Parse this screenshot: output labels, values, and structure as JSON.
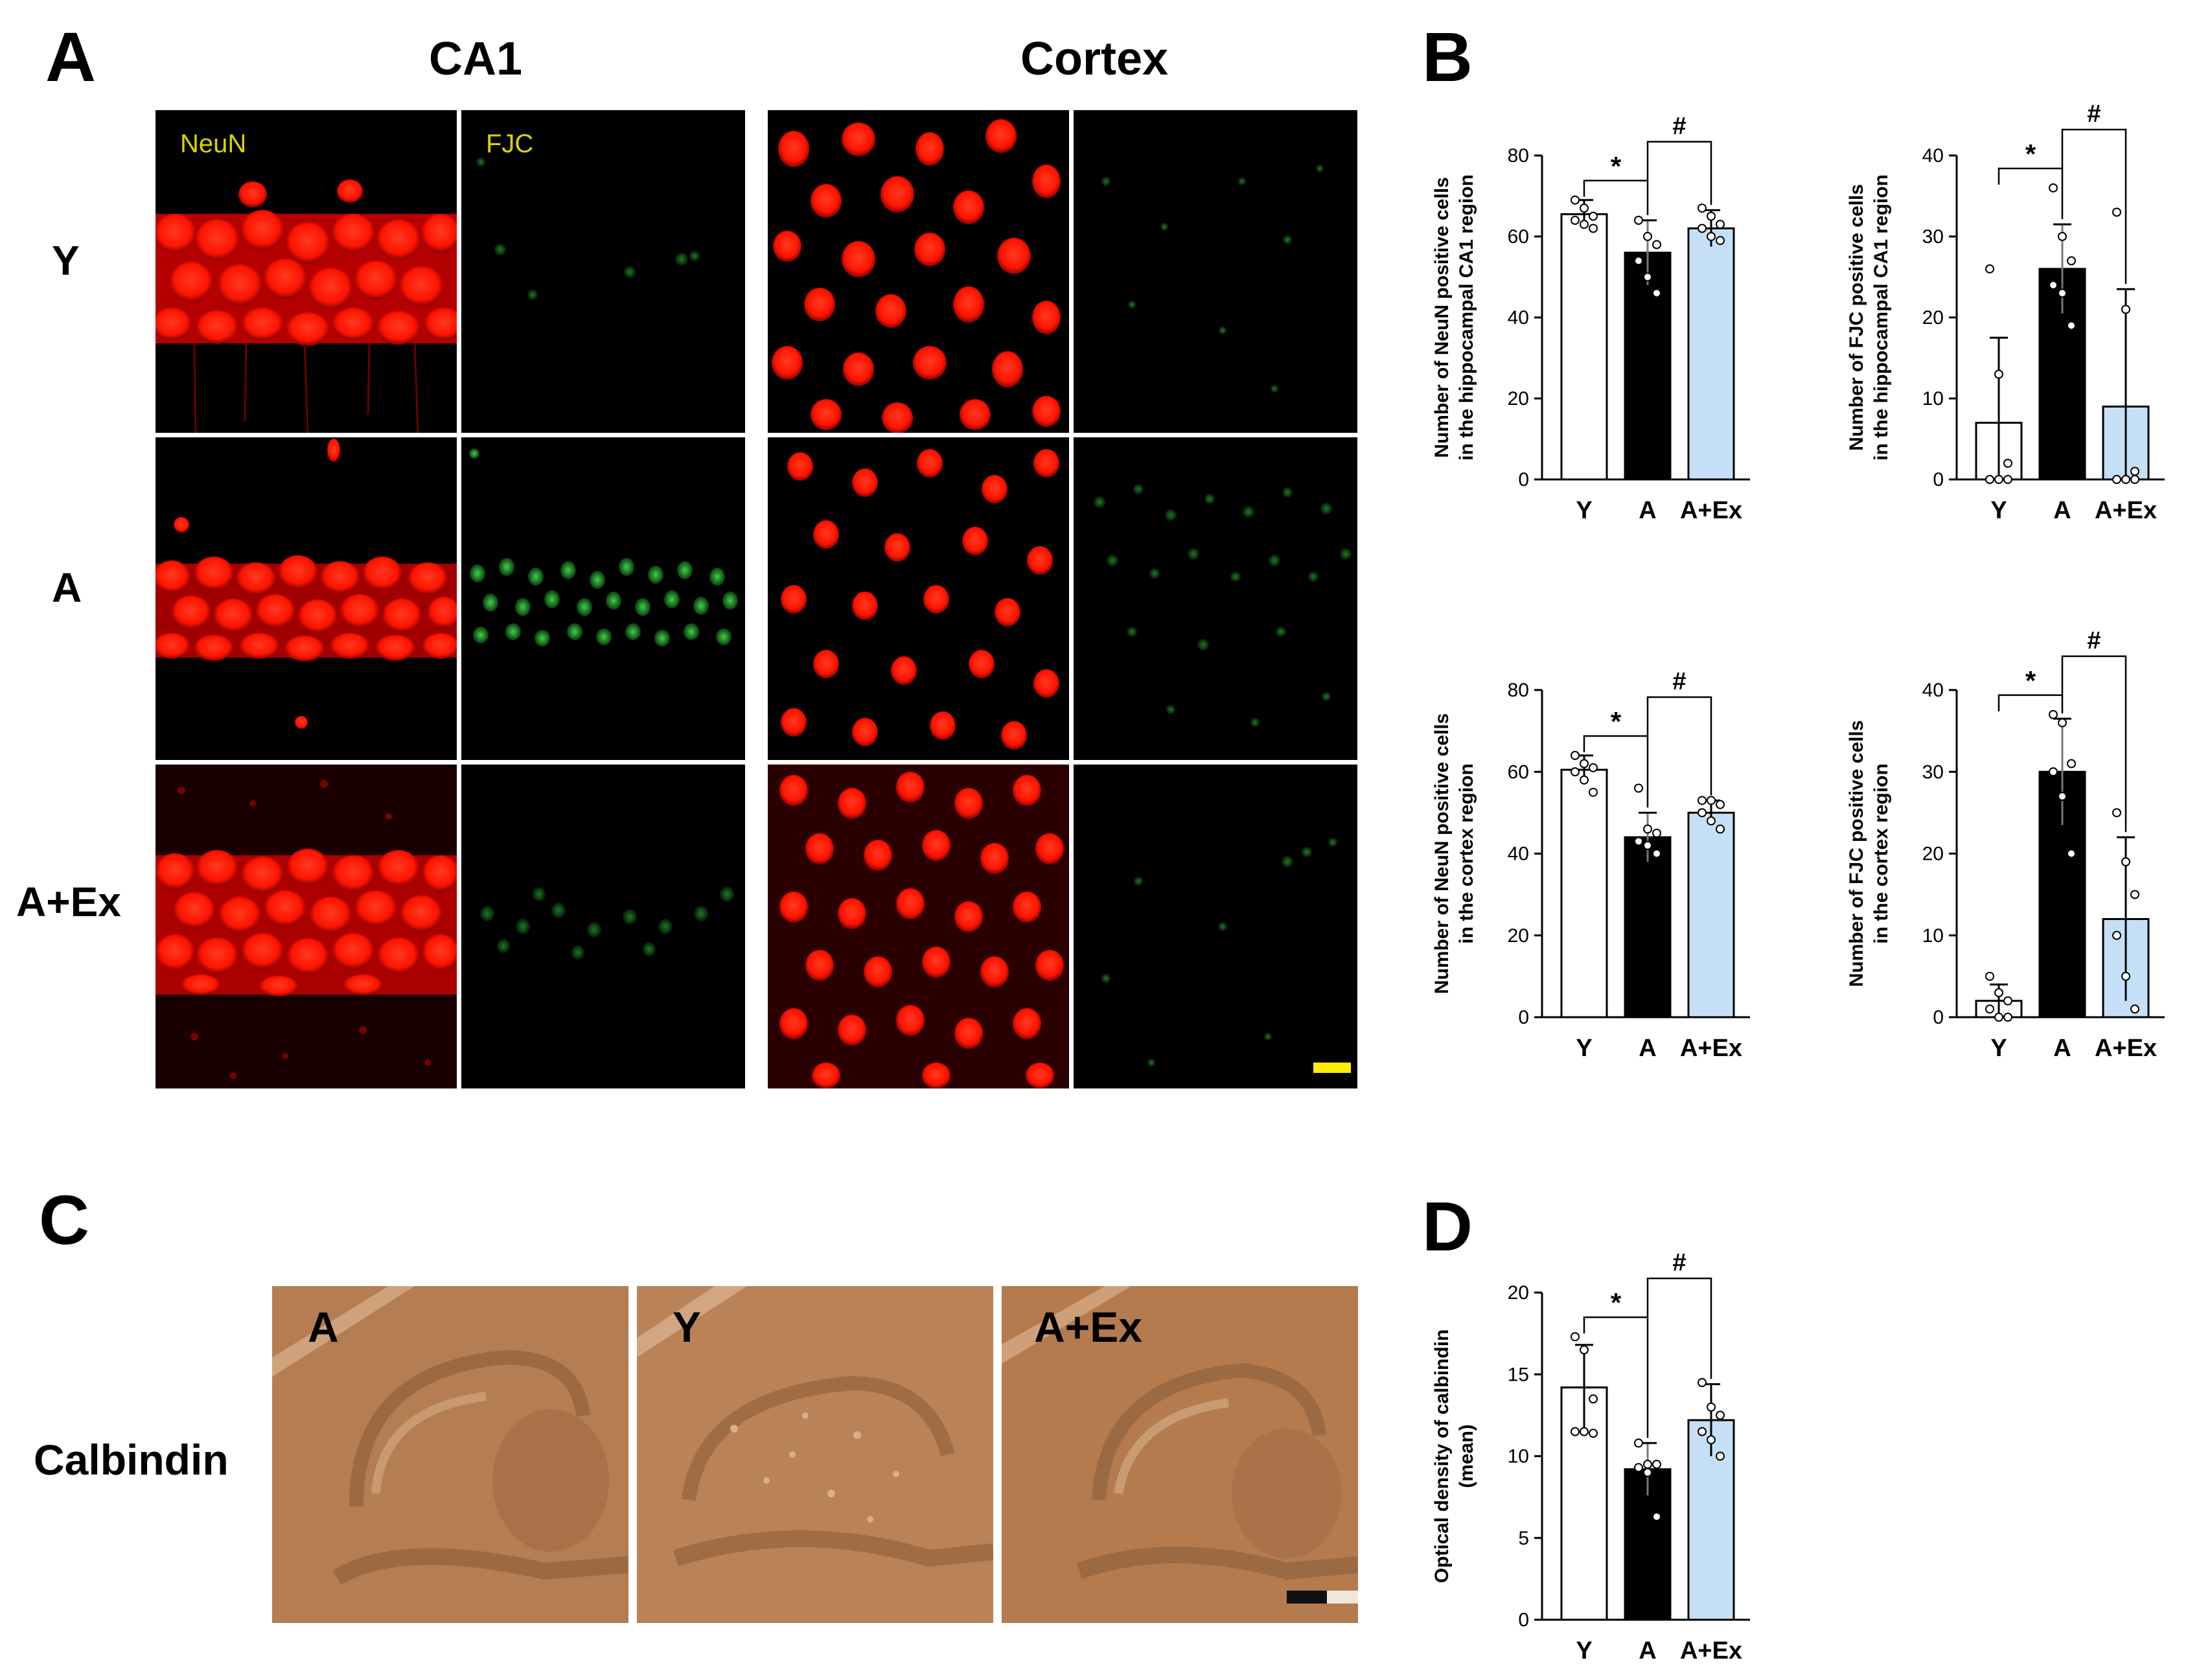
{
  "panels": {
    "a": "A",
    "b": "B",
    "c": "C",
    "d": "D"
  },
  "panel_a": {
    "col_titles": [
      "CA1",
      "Cortex"
    ],
    "stain_labels": [
      "NeuN",
      "FJC"
    ],
    "row_labels": [
      "Y",
      "A",
      "A+Ex"
    ]
  },
  "panel_c": {
    "row_label": "Calbindin",
    "image_labels": [
      "A",
      "Y",
      "A+Ex"
    ]
  },
  "colors": {
    "bar_Y": "#ffffff",
    "bar_A": "#000000",
    "bar_AEx": "#c5e0f6",
    "neun_red": "#ff1a00",
    "fjc_green": "#1faa2a",
    "calbindin_brown": "#b47c50",
    "scale_bar_fluor": "#ffee00"
  },
  "chart_data": [
    {
      "type": "bar",
      "categories": [
        "Y",
        "A",
        "A+Ex"
      ],
      "values": [
        65.5,
        56,
        62
      ],
      "errors": [
        3.5,
        8,
        4.5
      ],
      "points": [
        [
          69,
          67,
          65,
          64,
          63,
          62
        ],
        [
          64,
          60,
          58,
          54,
          50,
          46
        ],
        [
          67,
          65,
          63,
          62,
          60,
          59
        ]
      ],
      "ylabel_lines": [
        "Number of NeuN positive cells",
        "in the hippocampal CA1 region"
      ],
      "ylim": [
        0,
        80
      ],
      "yticks": [
        0,
        20,
        40,
        60,
        80
      ],
      "significance": [
        "*",
        "#"
      ]
    },
    {
      "type": "bar",
      "categories": [
        "Y",
        "A",
        "A+Ex"
      ],
      "values": [
        7,
        26,
        9
      ],
      "errors": [
        10.5,
        5.5,
        14.5
      ],
      "points": [
        [
          26,
          13,
          2,
          0,
          0,
          0
        ],
        [
          36,
          30,
          27,
          24,
          23,
          19
        ],
        [
          33,
          21,
          1,
          0,
          0,
          0
        ]
      ],
      "ylabel_lines": [
        "Number of FJC positive cells",
        "in the hippocampal CA1 region"
      ],
      "ylim": [
        0,
        40
      ],
      "yticks": [
        0,
        10,
        20,
        30,
        40
      ],
      "significance": [
        "*",
        "#"
      ]
    },
    {
      "type": "bar",
      "categories": [
        "Y",
        "A",
        "A+Ex"
      ],
      "values": [
        60.5,
        44,
        50
      ],
      "errors": [
        3.5,
        6,
        3
      ],
      "points": [
        [
          64,
          62,
          61,
          60,
          58,
          55
        ],
        [
          56,
          46,
          45,
          43,
          42,
          40
        ],
        [
          53,
          53,
          52,
          50,
          48,
          46
        ]
      ],
      "ylabel_lines": [
        "Number of NeuN positive cells",
        "in the cortex region"
      ],
      "ylim": [
        0,
        80
      ],
      "yticks": [
        0,
        20,
        40,
        60,
        80
      ],
      "significance": [
        "*",
        "#"
      ]
    },
    {
      "type": "bar",
      "categories": [
        "Y",
        "A",
        "A+Ex"
      ],
      "values": [
        2,
        30,
        12
      ],
      "errors": [
        2,
        6.5,
        10
      ],
      "points": [
        [
          5,
          3,
          2,
          1,
          0,
          0
        ],
        [
          37,
          36,
          31,
          30,
          27,
          20
        ],
        [
          25,
          19,
          15,
          10,
          5,
          1
        ]
      ],
      "ylabel_lines": [
        "Number of FJC positive cells",
        "in the cortex region"
      ],
      "ylim": [
        0,
        40
      ],
      "yticks": [
        0,
        10,
        20,
        30,
        40
      ],
      "significance": [
        "*",
        "#"
      ]
    },
    {
      "type": "bar",
      "categories": [
        "Y",
        "A",
        "A+Ex"
      ],
      "values": [
        14.2,
        9.2,
        12.2
      ],
      "errors": [
        2.6,
        1.6,
        2.2
      ],
      "points": [
        [
          17.3,
          16.5,
          13.5,
          11.5,
          11.5,
          11.4
        ],
        [
          10.8,
          9.5,
          9.5,
          9.3,
          9.0,
          6.3
        ],
        [
          14.5,
          13.0,
          12.5,
          11.5,
          11.0,
          10.0
        ]
      ],
      "ylabel_lines": [
        "Optical density of calbindin",
        "(mean)"
      ],
      "ylim": [
        0,
        20
      ],
      "yticks": [
        0,
        5,
        10,
        15,
        20
      ],
      "significance": [
        "*",
        "#"
      ]
    }
  ]
}
